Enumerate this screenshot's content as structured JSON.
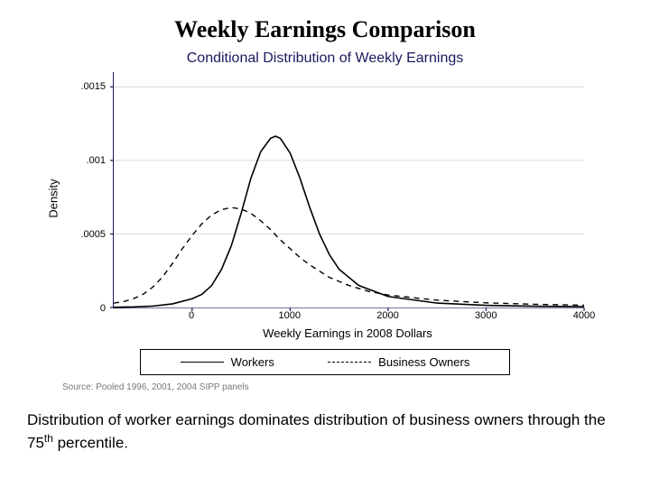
{
  "page": {
    "title": "Weekly Earnings Comparison",
    "caption_html": "Distribution of worker earnings dominates distribution of business owners through the 75<sup>th</sup> percentile."
  },
  "chart": {
    "type": "line-density",
    "title": "Conditional Distribution of Weekly Earnings",
    "title_color": "#1a1a5e",
    "title_fontsize": 16,
    "background_color": "#ffffff",
    "axis_color": "#1a1a5e",
    "grid_color": "#dedede",
    "grid_width": 1,
    "x": {
      "label": "Weekly Earnings in 2008 Dollars",
      "lim": [
        -800,
        4000
      ],
      "ticks": [
        0,
        1000,
        2000,
        3000,
        4000
      ],
      "label_fontsize": 13,
      "tick_fontsize": 11
    },
    "y": {
      "label": "Density",
      "lim": [
        0,
        0.0016
      ],
      "ticks": [
        0,
        0.0005,
        0.001,
        0.0015
      ],
      "tick_labels": [
        "0",
        ".0005",
        ".001",
        ".0015"
      ],
      "label_fontsize": 13,
      "tick_fontsize": 11
    },
    "series": [
      {
        "name": "Workers",
        "color": "#000000",
        "line_width": 1.6,
        "dash": "solid",
        "points": [
          [
            -800,
            2e-06
          ],
          [
            -600,
            4e-06
          ],
          [
            -400,
            1e-05
          ],
          [
            -200,
            2.5e-05
          ],
          [
            0,
            6e-05
          ],
          [
            100,
            9e-05
          ],
          [
            200,
            0.00015
          ],
          [
            300,
            0.00026
          ],
          [
            400,
            0.00042
          ],
          [
            500,
            0.00064
          ],
          [
            600,
            0.00088
          ],
          [
            700,
            0.00106
          ],
          [
            800,
            0.00115
          ],
          [
            850,
            0.001165
          ],
          [
            900,
            0.00115
          ],
          [
            1000,
            0.00105
          ],
          [
            1100,
            0.00088
          ],
          [
            1200,
            0.00068
          ],
          [
            1300,
            0.0005
          ],
          [
            1400,
            0.00036
          ],
          [
            1500,
            0.00026
          ],
          [
            1700,
            0.00015
          ],
          [
            2000,
            7.5e-05
          ],
          [
            2500,
            3e-05
          ],
          [
            3000,
            1.5e-05
          ],
          [
            3500,
            9e-06
          ],
          [
            4000,
            6e-06
          ]
        ]
      },
      {
        "name": "Business Owners",
        "color": "#000000",
        "line_width": 1.4,
        "dash": "6,5",
        "points": [
          [
            -800,
            3e-05
          ],
          [
            -700,
            4e-05
          ],
          [
            -600,
            6e-05
          ],
          [
            -500,
            9e-05
          ],
          [
            -400,
            0.00014
          ],
          [
            -300,
            0.00021
          ],
          [
            -200,
            0.0003
          ],
          [
            -100,
            0.0004
          ],
          [
            0,
            0.00049
          ],
          [
            100,
            0.00057
          ],
          [
            200,
            0.00063
          ],
          [
            300,
            0.000665
          ],
          [
            400,
            0.00068
          ],
          [
            500,
            0.00067
          ],
          [
            600,
            0.00064
          ],
          [
            700,
            0.00059
          ],
          [
            800,
            0.00053
          ],
          [
            900,
            0.00046
          ],
          [
            1000,
            0.0004
          ],
          [
            1100,
            0.00034
          ],
          [
            1200,
            0.00029
          ],
          [
            1400,
            0.000205
          ],
          [
            1600,
            0.00015
          ],
          [
            1800,
            0.00011
          ],
          [
            2000,
            8.5e-05
          ],
          [
            2500,
            5e-05
          ],
          [
            3000,
            3.2e-05
          ],
          [
            3500,
            2.2e-05
          ],
          [
            4000,
            1.6e-05
          ]
        ]
      }
    ],
    "legend": {
      "border_color": "#000000",
      "fontsize": 13,
      "items": [
        {
          "label": "Workers",
          "dash": "solid",
          "line_width": 1.6
        },
        {
          "label": "Business Owners",
          "dash": "dashed",
          "line_width": 1.4
        }
      ]
    },
    "source": "Source: Pooled 1996, 2001, 2004 SIPP panels"
  }
}
